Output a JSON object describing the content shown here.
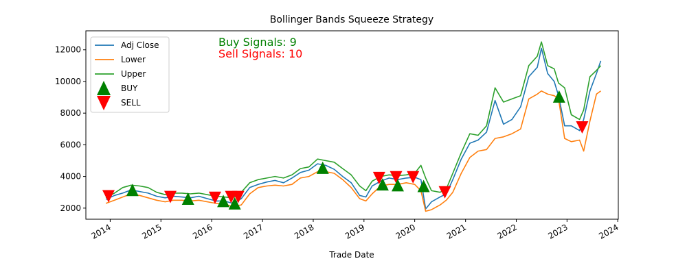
{
  "chart_data": {
    "type": "line",
    "title": "Bollinger Bands Squeeze Strategy",
    "xlabel": "Trade Date",
    "ylabel": "",
    "xlim": [
      "2013-07-10",
      "2024-01-05"
    ],
    "ylim": [
      1300,
      13200
    ],
    "yticks": [
      2000,
      4000,
      6000,
      8000,
      10000,
      12000
    ],
    "xticks": [
      {
        "date": "2014-01-01",
        "label": "2014"
      },
      {
        "date": "2015-01-01",
        "label": "2015"
      },
      {
        "date": "2016-01-01",
        "label": "2016"
      },
      {
        "date": "2017-01-01",
        "label": "2017"
      },
      {
        "date": "2018-01-01",
        "label": "2018"
      },
      {
        "date": "2019-01-01",
        "label": "2019"
      },
      {
        "date": "2020-01-01",
        "label": "2020"
      },
      {
        "date": "2021-01-01",
        "label": "2021"
      },
      {
        "date": "2022-01-01",
        "label": "2022"
      },
      {
        "date": "2023-01-01",
        "label": "2023"
      },
      {
        "date": "2024-01-01",
        "label": "2024"
      }
    ],
    "grid": false,
    "legend_position": "top-left",
    "series": [
      {
        "name": "Adj Close",
        "color": "#1f77b4",
        "points": [
          [
            "2013-12-01",
            2550
          ],
          [
            "2014-02-01",
            2800
          ],
          [
            "2014-04-01",
            2950
          ],
          [
            "2014-06-01",
            3150
          ],
          [
            "2014-08-01",
            3050
          ],
          [
            "2014-10-01",
            2950
          ],
          [
            "2014-12-01",
            2750
          ],
          [
            "2015-02-01",
            2650
          ],
          [
            "2015-04-01",
            2750
          ],
          [
            "2015-06-01",
            2700
          ],
          [
            "2015-08-01",
            2650
          ],
          [
            "2015-10-01",
            2750
          ],
          [
            "2015-12-01",
            2600
          ],
          [
            "2016-02-01",
            2450
          ],
          [
            "2016-04-01",
            2450
          ],
          [
            "2016-06-01",
            2300
          ],
          [
            "2016-08-01",
            2600
          ],
          [
            "2016-10-01",
            3300
          ],
          [
            "2016-12-01",
            3500
          ],
          [
            "2017-02-01",
            3650
          ],
          [
            "2017-04-01",
            3750
          ],
          [
            "2017-06-01",
            3600
          ],
          [
            "2017-08-01",
            3900
          ],
          [
            "2017-10-01",
            4250
          ],
          [
            "2017-12-01",
            4400
          ],
          [
            "2018-02-01",
            4800
          ],
          [
            "2018-04-01",
            4700
          ],
          [
            "2018-06-01",
            4450
          ],
          [
            "2018-08-01",
            4000
          ],
          [
            "2018-10-01",
            3600
          ],
          [
            "2018-12-01",
            2800
          ],
          [
            "2019-01-15",
            2700
          ],
          [
            "2019-03-01",
            3400
          ],
          [
            "2019-05-01",
            3700
          ],
          [
            "2019-07-01",
            3900
          ],
          [
            "2019-09-01",
            3800
          ],
          [
            "2019-11-01",
            3900
          ],
          [
            "2020-01-01",
            3950
          ],
          [
            "2020-02-15",
            3800
          ],
          [
            "2020-03-20",
            1950
          ],
          [
            "2020-05-01",
            2400
          ],
          [
            "2020-07-01",
            2700
          ],
          [
            "2020-08-15",
            2900
          ],
          [
            "2020-10-01",
            3800
          ],
          [
            "2020-12-01",
            5100
          ],
          [
            "2021-02-01",
            6100
          ],
          [
            "2021-04-01",
            6300
          ],
          [
            "2021-06-01",
            6800
          ],
          [
            "2021-08-01",
            8800
          ],
          [
            "2021-10-01",
            7300
          ],
          [
            "2021-12-01",
            7600
          ],
          [
            "2022-02-01",
            8400
          ],
          [
            "2022-04-01",
            10300
          ],
          [
            "2022-06-01",
            10900
          ],
          [
            "2022-07-01",
            12100
          ],
          [
            "2022-08-15",
            10500
          ],
          [
            "2022-10-01",
            10000
          ],
          [
            "2022-11-01",
            9100
          ],
          [
            "2022-12-15",
            7200
          ],
          [
            "2023-02-01",
            7200
          ],
          [
            "2023-04-01",
            6900
          ],
          [
            "2023-05-01",
            7600
          ],
          [
            "2023-06-15",
            9400
          ],
          [
            "2023-08-01",
            10500
          ],
          [
            "2023-09-01",
            11300
          ]
        ]
      },
      {
        "name": "Lower",
        "color": "#ff7f0e",
        "points": [
          [
            "2013-12-01",
            2300
          ],
          [
            "2014-02-01",
            2500
          ],
          [
            "2014-04-01",
            2700
          ],
          [
            "2014-06-01",
            2900
          ],
          [
            "2014-08-01",
            2800
          ],
          [
            "2014-10-01",
            2650
          ],
          [
            "2014-12-01",
            2500
          ],
          [
            "2015-02-01",
            2400
          ],
          [
            "2015-04-01",
            2500
          ],
          [
            "2015-06-01",
            2500
          ],
          [
            "2015-08-01",
            2450
          ],
          [
            "2015-10-01",
            2500
          ],
          [
            "2015-12-01",
            2400
          ],
          [
            "2016-02-01",
            2300
          ],
          [
            "2016-04-01",
            2250
          ],
          [
            "2016-06-01",
            2100
          ],
          [
            "2016-08-01",
            2200
          ],
          [
            "2016-10-01",
            2900
          ],
          [
            "2016-12-01",
            3300
          ],
          [
            "2017-02-01",
            3400
          ],
          [
            "2017-04-01",
            3450
          ],
          [
            "2017-06-01",
            3400
          ],
          [
            "2017-08-01",
            3500
          ],
          [
            "2017-10-01",
            3900
          ],
          [
            "2017-12-01",
            4000
          ],
          [
            "2018-02-01",
            4300
          ],
          [
            "2018-04-01",
            4300
          ],
          [
            "2018-06-01",
            4200
          ],
          [
            "2018-08-01",
            3800
          ],
          [
            "2018-10-01",
            3300
          ],
          [
            "2018-12-01",
            2600
          ],
          [
            "2019-01-15",
            2450
          ],
          [
            "2019-03-01",
            2900
          ],
          [
            "2019-05-01",
            3400
          ],
          [
            "2019-07-01",
            3500
          ],
          [
            "2019-09-01",
            3500
          ],
          [
            "2019-11-01",
            3600
          ],
          [
            "2020-01-01",
            3500
          ],
          [
            "2020-02-15",
            3100
          ],
          [
            "2020-03-20",
            1800
          ],
          [
            "2020-05-01",
            1900
          ],
          [
            "2020-07-01",
            2200
          ],
          [
            "2020-08-15",
            2500
          ],
          [
            "2020-10-01",
            3000
          ],
          [
            "2020-12-01",
            4200
          ],
          [
            "2021-02-01",
            5200
          ],
          [
            "2021-04-01",
            5600
          ],
          [
            "2021-06-01",
            5700
          ],
          [
            "2021-08-01",
            6400
          ],
          [
            "2021-10-01",
            6500
          ],
          [
            "2021-12-01",
            6700
          ],
          [
            "2022-02-01",
            7000
          ],
          [
            "2022-04-01",
            8900
          ],
          [
            "2022-06-01",
            9200
          ],
          [
            "2022-07-01",
            9400
          ],
          [
            "2022-08-15",
            9200
          ],
          [
            "2022-10-01",
            9100
          ],
          [
            "2022-11-01",
            8900
          ],
          [
            "2022-12-15",
            6400
          ],
          [
            "2023-02-01",
            6200
          ],
          [
            "2023-04-01",
            6300
          ],
          [
            "2023-05-01",
            5600
          ],
          [
            "2023-06-15",
            7500
          ],
          [
            "2023-08-01",
            9200
          ],
          [
            "2023-09-01",
            9400
          ]
        ]
      },
      {
        "name": "Upper",
        "color": "#2ca02c",
        "points": [
          [
            "2013-12-01",
            2650
          ],
          [
            "2014-02-01",
            2950
          ],
          [
            "2014-04-01",
            3300
          ],
          [
            "2014-06-01",
            3450
          ],
          [
            "2014-08-01",
            3400
          ],
          [
            "2014-10-01",
            3300
          ],
          [
            "2014-12-01",
            3000
          ],
          [
            "2015-02-01",
            2850
          ],
          [
            "2015-04-01",
            2950
          ],
          [
            "2015-06-01",
            2950
          ],
          [
            "2015-08-01",
            2900
          ],
          [
            "2015-10-01",
            2950
          ],
          [
            "2015-12-01",
            2850
          ],
          [
            "2016-02-01",
            2750
          ],
          [
            "2016-04-01",
            2700
          ],
          [
            "2016-06-01",
            2650
          ],
          [
            "2016-08-01",
            3000
          ],
          [
            "2016-10-01",
            3600
          ],
          [
            "2016-12-01",
            3800
          ],
          [
            "2017-02-01",
            3900
          ],
          [
            "2017-04-01",
            4000
          ],
          [
            "2017-06-01",
            3900
          ],
          [
            "2017-08-01",
            4100
          ],
          [
            "2017-10-01",
            4500
          ],
          [
            "2017-12-01",
            4600
          ],
          [
            "2018-02-01",
            5100
          ],
          [
            "2018-04-01",
            5000
          ],
          [
            "2018-06-01",
            4900
          ],
          [
            "2018-08-01",
            4500
          ],
          [
            "2018-10-01",
            4100
          ],
          [
            "2018-12-01",
            3400
          ],
          [
            "2019-01-15",
            3100
          ],
          [
            "2019-03-01",
            3700
          ],
          [
            "2019-05-01",
            4000
          ],
          [
            "2019-07-01",
            4100
          ],
          [
            "2019-09-01",
            4050
          ],
          [
            "2019-11-01",
            4100
          ],
          [
            "2020-01-01",
            4200
          ],
          [
            "2020-02-15",
            4700
          ],
          [
            "2020-03-20",
            3900
          ],
          [
            "2020-05-01",
            3100
          ],
          [
            "2020-07-01",
            3000
          ],
          [
            "2020-08-15",
            3200
          ],
          [
            "2020-10-01",
            4200
          ],
          [
            "2020-12-01",
            5500
          ],
          [
            "2021-02-01",
            6700
          ],
          [
            "2021-04-01",
            6600
          ],
          [
            "2021-06-01",
            7200
          ],
          [
            "2021-08-01",
            9600
          ],
          [
            "2021-10-01",
            8700
          ],
          [
            "2021-12-01",
            8900
          ],
          [
            "2022-02-01",
            9100
          ],
          [
            "2022-04-01",
            11000
          ],
          [
            "2022-06-01",
            11600
          ],
          [
            "2022-07-01",
            12500
          ],
          [
            "2022-08-15",
            11000
          ],
          [
            "2022-10-01",
            10800
          ],
          [
            "2022-11-01",
            9900
          ],
          [
            "2022-12-15",
            9600
          ],
          [
            "2023-02-01",
            7900
          ],
          [
            "2023-04-01",
            7600
          ],
          [
            "2023-05-01",
            8200
          ],
          [
            "2023-06-15",
            10300
          ],
          [
            "2023-08-01",
            10700
          ],
          [
            "2023-09-01",
            11000
          ]
        ]
      }
    ],
    "signals": {
      "buy": {
        "name": "BUY",
        "color": "#008000",
        "points": [
          [
            "2014-06-10",
            3150
          ],
          [
            "2015-07-15",
            2600
          ],
          [
            "2016-03-25",
            2450
          ],
          [
            "2016-06-15",
            2300
          ],
          [
            "2018-03-10",
            4550
          ],
          [
            "2019-05-15",
            3500
          ],
          [
            "2019-09-01",
            3450
          ],
          [
            "2020-03-05",
            3400
          ],
          [
            "2022-11-05",
            9050
          ]
        ]
      },
      "sell": {
        "name": "SELL",
        "color": "#ff0000",
        "points": [
          [
            "2013-12-20",
            2750
          ],
          [
            "2015-03-10",
            2700
          ],
          [
            "2016-01-25",
            2650
          ],
          [
            "2016-05-20",
            2700
          ],
          [
            "2016-07-10",
            2700
          ],
          [
            "2019-04-20",
            3900
          ],
          [
            "2019-08-20",
            3950
          ],
          [
            "2019-12-20",
            3950
          ],
          [
            "2020-08-05",
            3000
          ],
          [
            "2023-04-20",
            7100
          ]
        ]
      }
    },
    "annotations": [
      {
        "text": "Buy Signals: 9",
        "color": "#008000"
      },
      {
        "text": "Sell Signals: 10",
        "color": "#ff0000"
      }
    ]
  }
}
